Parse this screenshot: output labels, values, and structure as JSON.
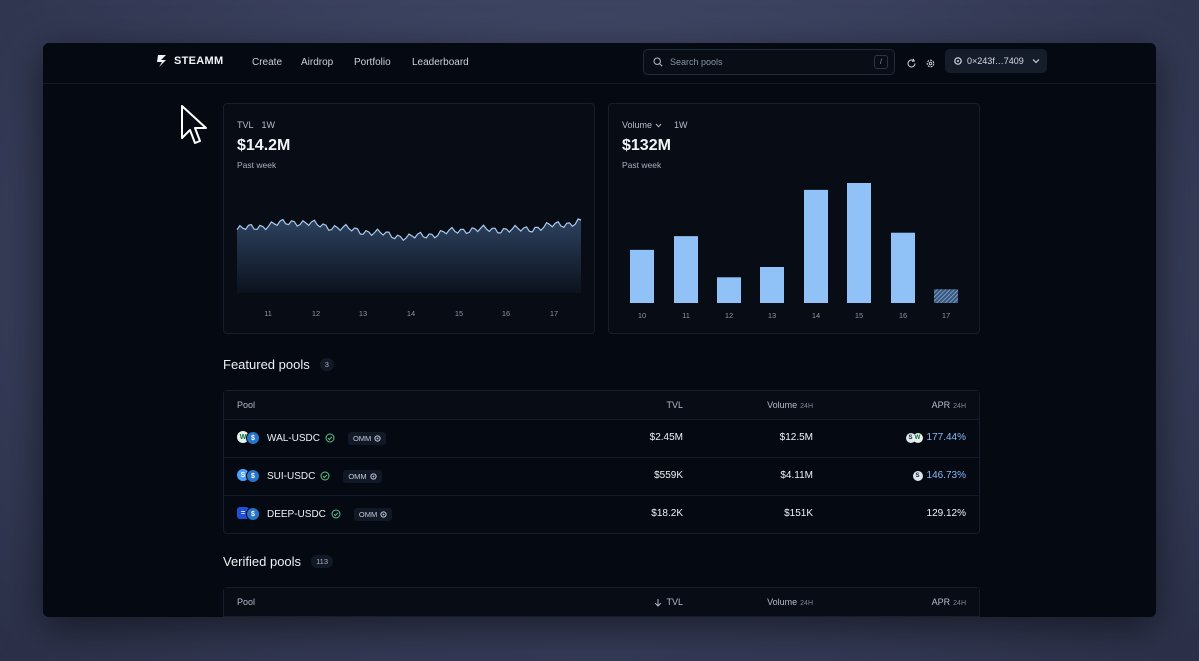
{
  "nav": {
    "logo": "STEAMM",
    "links": [
      "Create",
      "Airdrop",
      "Portfolio",
      "Leaderboard"
    ],
    "search_placeholder": "Search pools",
    "search_shortcut": "/",
    "wallet": "0×243f…7409"
  },
  "tvl_card": {
    "label": "TVL",
    "range": "1W",
    "value": "$14.2M",
    "period": "Past week",
    "chart_data": {
      "type": "area",
      "x": [
        "11",
        "12",
        "13",
        "14",
        "15",
        "16",
        "17"
      ],
      "values": [
        14.2,
        14.3,
        14.2,
        14.1,
        14.2,
        14.2,
        14.3
      ]
    }
  },
  "volume_card": {
    "label": "Volume",
    "range": "1W",
    "value": "$132M",
    "period": "Past week",
    "chart_data": {
      "type": "bar",
      "categories": [
        "10",
        "11",
        "12",
        "13",
        "14",
        "15",
        "16",
        "17"
      ],
      "values": [
        15.5,
        19.5,
        7.5,
        10.5,
        33,
        35,
        20.5,
        4
      ],
      "last_bar_partial": true
    }
  },
  "featured": {
    "title": "Featured pools",
    "count": "3",
    "headers": {
      "pool": "Pool",
      "tvl": "TVL",
      "volume": "Volume",
      "volume_hint": "24H",
      "apr": "APR",
      "apr_hint": "24H"
    },
    "rows": [
      {
        "pair": "WAL-USDC",
        "tag": "OMM",
        "tvl": "$2.45M",
        "volume": "$12.5M",
        "apr": "177.44%"
      },
      {
        "pair": "SUI-USDC",
        "tag": "OMM",
        "tvl": "$559K",
        "volume": "$4.11M",
        "apr": "146.73%"
      },
      {
        "pair": "DEEP-USDC",
        "tag": "OMM",
        "tvl": "$18.2K",
        "volume": "$151K",
        "apr": "129.12%"
      }
    ]
  },
  "verified": {
    "title": "Verified pools",
    "count": "113",
    "headers": {
      "pool": "Pool",
      "tvl": "TVL",
      "volume": "Volume",
      "volume_hint": "24H",
      "apr": "APR",
      "apr_hint": "24H"
    }
  }
}
